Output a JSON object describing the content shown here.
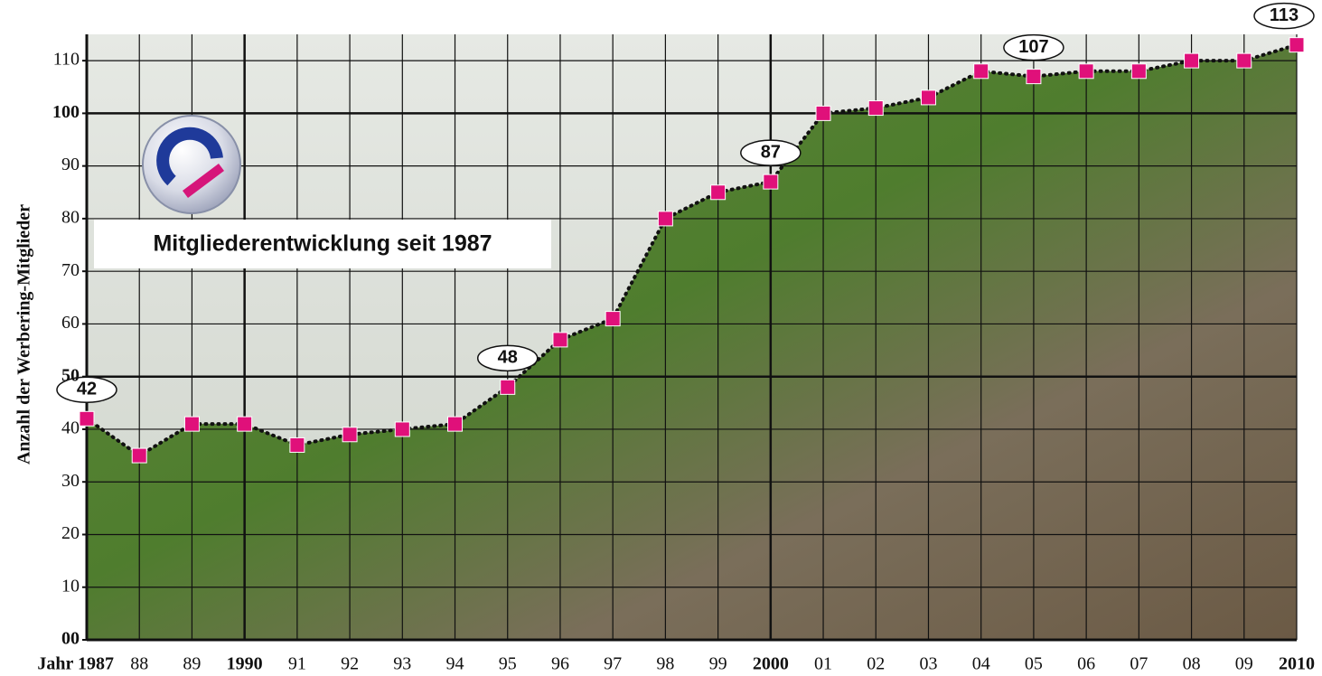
{
  "chart_data": {
    "type": "line",
    "title": "Mitgliederentwicklung seit 1987",
    "y_label": "Anzahl der Werbering-Mitglieder",
    "categories": [
      "Jahr 1987",
      "88",
      "89",
      "1990",
      "91",
      "92",
      "93",
      "94",
      "95",
      "96",
      "97",
      "98",
      "99",
      "2000",
      "01",
      "02",
      "03",
      "04",
      "05",
      "06",
      "07",
      "08",
      "09",
      "2010"
    ],
    "values": [
      42,
      35,
      41,
      41,
      37,
      39,
      40,
      41,
      48,
      57,
      61,
      80,
      85,
      87,
      100,
      101,
      103,
      108,
      107,
      108,
      108,
      110,
      110,
      113
    ],
    "value_labels": [
      "42",
      null,
      null,
      null,
      null,
      null,
      null,
      null,
      "48",
      null,
      null,
      null,
      null,
      "87",
      null,
      null,
      null,
      null,
      "107",
      null,
      null,
      null,
      null,
      "113"
    ],
    "color": "#e0107a",
    "ylim": [
      0,
      115
    ],
    "yticks": [
      {
        "value": 0,
        "label": "00"
      },
      10,
      20,
      30,
      40,
      50,
      60,
      70,
      80,
      90,
      100,
      110
    ],
    "grid": true
  }
}
